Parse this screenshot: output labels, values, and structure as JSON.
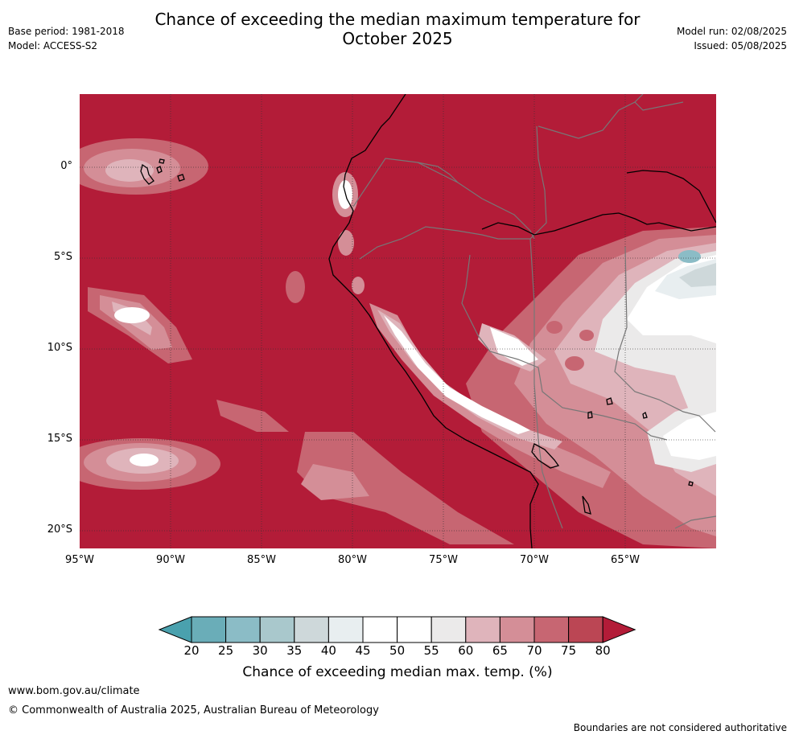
{
  "title_line1": "Chance of exceeding the median maximum temperature for",
  "title_line2": "October 2025",
  "meta_left": {
    "base_period": "Base period: 1981-2018",
    "model": "Model: ACCESS-S2"
  },
  "meta_right": {
    "model_run": "Model run: 02/08/2025",
    "issued": "Issued: 05/08/2025"
  },
  "map": {
    "lat_labels": [
      "0°",
      "5°S",
      "10°S",
      "15°S",
      "20°S"
    ],
    "lon_labels": [
      "95°W",
      "90°W",
      "85°W",
      "80°W",
      "75°W",
      "70°W",
      "65°W"
    ],
    "colors": {
      "background": "#b31c38",
      "land_border": "#000000",
      "country_border": "#777777",
      "grid": "#333333"
    }
  },
  "colorbar": {
    "label": "Chance of exceeding median max. temp. (%)",
    "ticks": [
      "20",
      "25",
      "30",
      "35",
      "40",
      "45",
      "50",
      "55",
      "60",
      "65",
      "70",
      "75",
      "80"
    ],
    "colors": [
      "#4aa1ae",
      "#6aadb8",
      "#8bbcc6",
      "#a9c8cc",
      "#ced8da",
      "#e8eef0",
      "#ffffff",
      "#ffffff",
      "#ebeaea",
      "#dfb4bb",
      "#d48e97",
      "#c76672",
      "#bb4654",
      "#b31c38"
    ]
  },
  "footer": {
    "website": "www.bom.gov.au/climate",
    "copyright": "© Commonwealth of Australia 2025, Australian Bureau of Meteorology",
    "disclaimer": "Boundaries are not considered authoritative"
  }
}
